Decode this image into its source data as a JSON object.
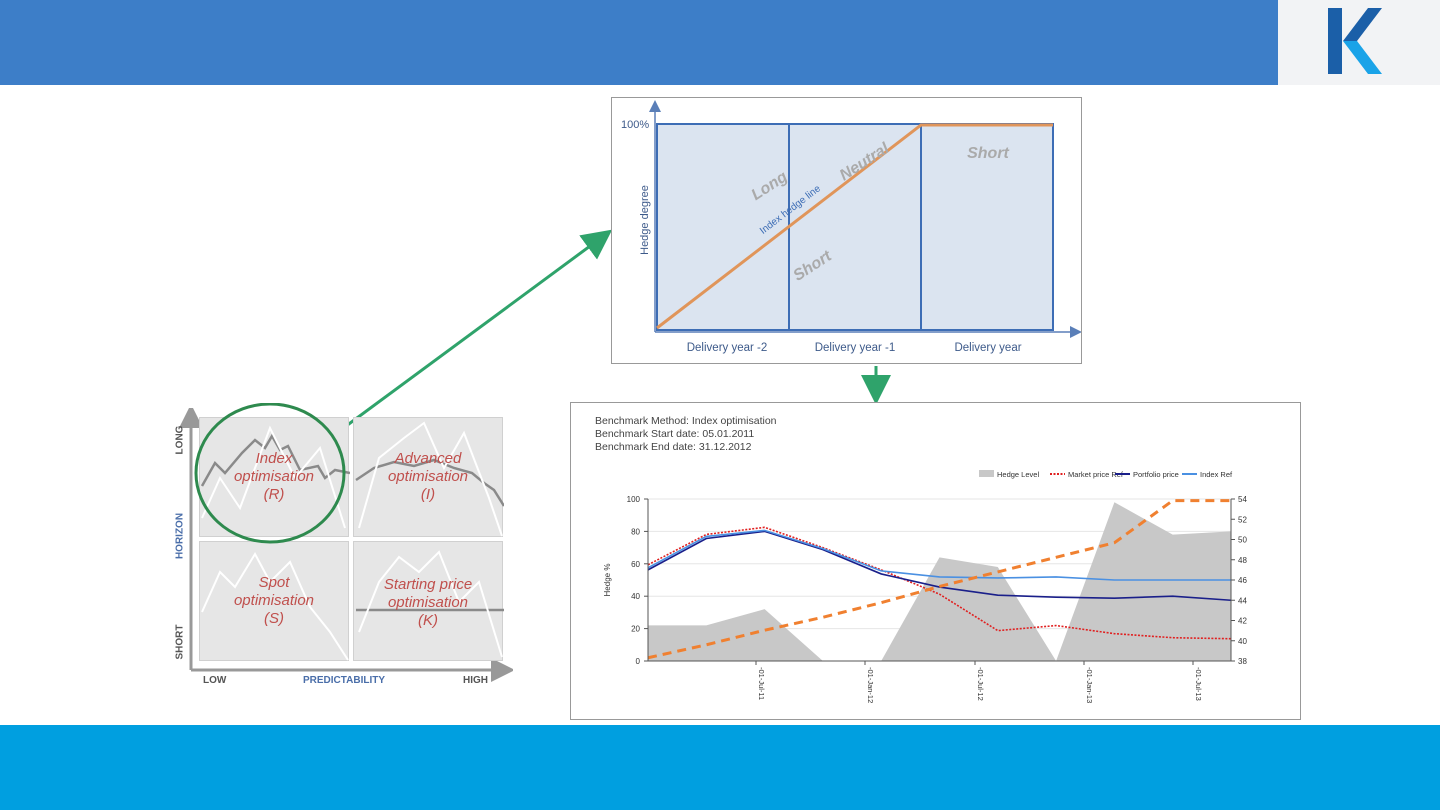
{
  "colors": {
    "header": "#3d7ec8",
    "footer": "#009fe0",
    "arrow": "#2fa36b",
    "logo_dark": "#1b5fa8",
    "logo_light": "#1aa3e8",
    "cell_text": "#c0504d",
    "hedge_line": "#e0955a",
    "area_fill": "#dbe4f0",
    "area_stroke": "#3d6db5",
    "hedge_level": "#c8c8c8",
    "market_price": "#e02020",
    "portfolio_price": "#1a1f8a",
    "index_ref": "#4a90e2",
    "dashed_orange": "#f08030"
  },
  "matrix": {
    "y_axis_title": "HORIZON",
    "y_top": "LONG",
    "y_bottom": "SHORT",
    "x_axis_title": "PREDICTABILITY",
    "x_left": "LOW",
    "x_right": "HIGH",
    "cells": [
      {
        "line1": "Index",
        "line2": "optimisation",
        "line3": "(R)"
      },
      {
        "line1": "Advanced",
        "line2": "optimisation",
        "line3": "(I)"
      },
      {
        "line1": "Spot",
        "line2": "optimisation",
        "line3": "(S)"
      },
      {
        "line1": "Starting price",
        "line2": "optimisation",
        "line3": "(K)"
      }
    ]
  },
  "hedge_diagram": {
    "y_label": "Hedge degree",
    "y_max_label": "100%",
    "x_labels": [
      "Delivery year -2",
      "Delivery year -1",
      "Delivery year"
    ],
    "annotations": {
      "long": "Long",
      "neutral": "Neutral",
      "short_lower": "Short",
      "short_right": "Short",
      "index_line": "Index hedge line"
    }
  },
  "benchmark": {
    "method_line": "Benchmark Method: Index optimisation",
    "start_line": "Benchmark Start date: 05.01.2011",
    "end_line": "Benchmark End date:  31.12.2012"
  },
  "chart_data": {
    "type": "line",
    "ylabel": "Hedge %",
    "ylim": [
      0,
      100
    ],
    "y_ticks": [
      "0",
      "20",
      "40",
      "60",
      "80",
      "100"
    ],
    "y2lim": [
      38,
      54
    ],
    "y2_ticks": [
      "38",
      "40",
      "42",
      "44",
      "46",
      "48",
      "50",
      "52",
      "54"
    ],
    "x_tick_labels": [
      "-01-Jul-11",
      "-01-Jan-12",
      "-01-Jul-12",
      "-01-Jan-13",
      "-01-Jul-13"
    ],
    "legend": [
      "Hedge Level",
      "Market price Ref",
      "Portfolio price",
      "Index Ref"
    ],
    "legend_position": "top-right",
    "x": [
      0,
      3,
      6,
      9,
      12,
      15,
      18,
      21,
      24,
      27,
      30
    ],
    "series": [
      {
        "name": "Hedge Level",
        "axis": "left",
        "style": "area",
        "values": [
          22,
          22,
          32,
          0,
          0,
          64,
          58,
          0,
          98,
          78,
          80
        ]
      },
      {
        "name": "Market price Ref",
        "axis": "right",
        "values": [
          47.5,
          50.5,
          51.2,
          49.2,
          47.0,
          44.6,
          41.0,
          41.5,
          40.7,
          40.3,
          40.2
        ]
      },
      {
        "name": "Portfolio price",
        "axis": "right",
        "values": [
          47.0,
          50.1,
          50.8,
          49.0,
          46.6,
          45.3,
          44.5,
          44.3,
          44.2,
          44.4,
          44.0
        ]
      },
      {
        "name": "Index Ref",
        "axis": "right",
        "values": [
          47.2,
          50.3,
          50.9,
          49.1,
          46.9,
          46.3,
          46.2,
          46.3,
          46.0,
          46.0,
          46.0
        ]
      },
      {
        "name": "",
        "axis": "left",
        "style": "dashed",
        "values": [
          2,
          10,
          19,
          27,
          36,
          46,
          55,
          64,
          73,
          99,
          99
        ]
      }
    ]
  }
}
